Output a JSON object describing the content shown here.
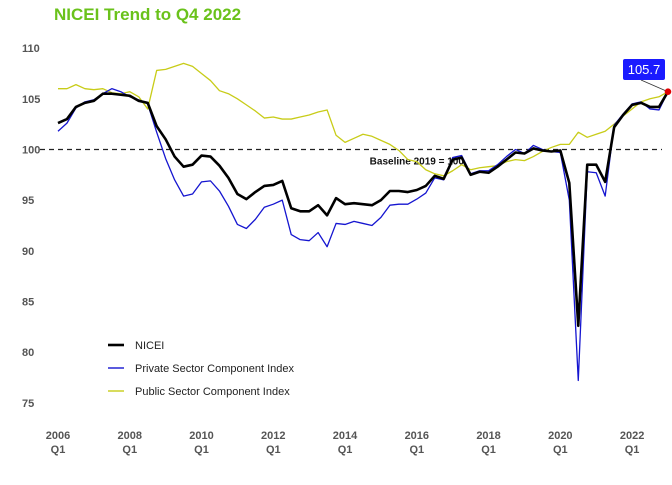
{
  "chart_data": {
    "type": "line",
    "title": "NICEI Trend to Q4 2022",
    "title_color": "#6ac21b",
    "xlabel": "",
    "ylabel": "",
    "xlim": [
      2006.0,
      2022.75
    ],
    "ylim": [
      73.5,
      111
    ],
    "y_ticks": [
      75,
      80,
      85,
      90,
      95,
      100,
      105,
      110
    ],
    "x_ticks": [
      {
        "year": 2006,
        "label": "2006",
        "sub": "Q1"
      },
      {
        "year": 2008,
        "label": "2008",
        "sub": "Q1"
      },
      {
        "year": 2010,
        "label": "2010",
        "sub": "Q1"
      },
      {
        "year": 2012,
        "label": "2012",
        "sub": "Q1"
      },
      {
        "year": 2014,
        "label": "2014",
        "sub": "Q1"
      },
      {
        "year": 2016,
        "label": "2016",
        "sub": "Q1"
      },
      {
        "year": 2018,
        "label": "2018",
        "sub": "Q1"
      },
      {
        "year": 2020,
        "label": "2020",
        "sub": "Q1"
      },
      {
        "year": 2022,
        "label": "2022",
        "sub": "Q1"
      }
    ],
    "grid": false,
    "x_start": 2006.0,
    "x_step": 0.25,
    "baseline": {
      "value": 100,
      "label": "Baseline 2019 = 100",
      "style": "dashed",
      "color": "#222222"
    },
    "legend": {
      "placement": "bottom-left"
    },
    "callout": {
      "label": "105.7",
      "value": 105.7,
      "box_color": "#1a1aff",
      "point_color": "#e00000"
    },
    "series": [
      {
        "name": "NICEI",
        "color": "#000000",
        "values": [
          102.6,
          103.0,
          104.2,
          104.6,
          104.8,
          105.5,
          105.5,
          105.4,
          105.3,
          104.8,
          104.6,
          102.3,
          101.0,
          99.3,
          98.3,
          98.5,
          99.4,
          99.3,
          98.4,
          97.2,
          95.6,
          95.1,
          95.8,
          96.4,
          96.5,
          96.9,
          94.2,
          93.9,
          93.9,
          94.5,
          93.5,
          95.2,
          94.6,
          94.7,
          94.6,
          94.5,
          95.0,
          95.9,
          95.9,
          95.8,
          96.0,
          96.4,
          97.4,
          97.1,
          99.0,
          99.2,
          97.5,
          97.8,
          97.7,
          98.3,
          99.0,
          99.7,
          99.6,
          100.1,
          99.9,
          99.8,
          99.9,
          96.7,
          82.6,
          98.5,
          98.5,
          96.8,
          102.2,
          103.4,
          104.4,
          104.6,
          104.2,
          104.2,
          105.7
        ]
      },
      {
        "name": "Private Sector Component Index",
        "color": "#1515d0",
        "values": [
          101.8,
          102.6,
          104.1,
          104.7,
          104.9,
          105.5,
          106.0,
          105.7,
          105.2,
          104.9,
          104.5,
          101.7,
          99.1,
          97.0,
          95.4,
          95.6,
          96.8,
          96.9,
          95.9,
          94.4,
          92.6,
          92.2,
          93.1,
          94.3,
          94.6,
          95.0,
          91.6,
          91.1,
          91.0,
          91.8,
          90.4,
          92.7,
          92.6,
          92.9,
          92.7,
          92.5,
          93.3,
          94.5,
          94.6,
          94.6,
          95.1,
          95.7,
          97.2,
          97.0,
          99.2,
          99.4,
          97.6,
          97.9,
          97.9,
          98.5,
          99.3,
          100.0,
          99.6,
          100.4,
          100.0,
          99.8,
          99.7,
          95.0,
          77.2,
          97.8,
          97.7,
          95.4,
          102.4,
          103.5,
          104.5,
          104.7,
          104.0,
          103.9,
          105.7
        ]
      },
      {
        "name": "Public Sector Component Index",
        "color": "#c8cc18",
        "values": [
          106.0,
          106.0,
          106.4,
          106.0,
          105.9,
          106.0,
          105.6,
          105.5,
          105.7,
          105.2,
          104.0,
          107.8,
          107.9,
          108.2,
          108.5,
          108.2,
          107.5,
          106.8,
          105.8,
          105.5,
          105.0,
          104.4,
          103.8,
          103.1,
          103.2,
          103.0,
          103.0,
          103.2,
          103.4,
          103.7,
          103.9,
          101.4,
          100.7,
          101.1,
          101.5,
          101.3,
          100.9,
          100.5,
          99.9,
          99.0,
          98.8,
          98.0,
          97.6,
          97.4,
          97.9,
          98.5,
          98.0,
          98.2,
          98.3,
          98.4,
          98.8,
          99.0,
          98.9,
          99.3,
          99.8,
          100.2,
          100.5,
          100.5,
          101.7,
          101.2,
          101.5,
          101.8,
          102.5,
          103.3,
          104.0,
          104.7,
          105.0,
          105.2,
          105.7
        ]
      }
    ]
  }
}
